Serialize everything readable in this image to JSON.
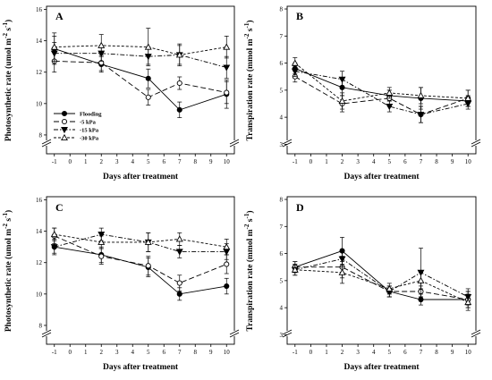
{
  "series_styles": {
    "Flooding": {
      "marker": "circle",
      "fill": "#000000",
      "dash": ""
    },
    "-5 kPa": {
      "marker": "circle",
      "fill": "#ffffff",
      "dash": "6,3"
    },
    "-15 kPa": {
      "marker": "triangle-down",
      "fill": "#000000",
      "dash": "5,2,1.5,2"
    },
    "-30 kPa": {
      "marker": "triangle-up",
      "fill": "#ffffff",
      "dash": "3,2"
    }
  },
  "legend": [
    "Flooding",
    "-5 kPa",
    "-15 kPa",
    "-30 kPa"
  ],
  "chart_data": [
    {
      "panel": "A",
      "type": "line",
      "xlabel": "Days after treatment",
      "ylabel": "Photosynthetic rate (umol m-2 s-1)",
      "ylabel_main": "Photosynthetic rate (umol m",
      "ylabel_exp1": "-2",
      "ylabel_mid": " s",
      "ylabel_exp2": "-1",
      "ylabel_end": ")",
      "xlim": [
        -1.5,
        10.5
      ],
      "ylim": [
        6.8,
        16.2
      ],
      "xticks": [
        -1,
        0,
        1,
        2,
        3,
        4,
        5,
        6,
        7,
        8,
        9,
        10
      ],
      "yticks": [
        8,
        10,
        12,
        14,
        16
      ],
      "x": [
        -1,
        2,
        5,
        7,
        10
      ],
      "series": [
        {
          "name": "Flooding",
          "values": [
            13.5,
            12.5,
            11.6,
            9.6,
            10.6
          ],
          "errors": [
            0.8,
            0.5,
            0.6,
            0.5,
            0.9
          ]
        },
        {
          "name": "-5 kPa",
          "values": [
            12.7,
            12.6,
            10.4,
            11.3,
            10.7
          ],
          "errors": [
            0.7,
            0.5,
            0.5,
            0.4,
            0.7
          ]
        },
        {
          "name": "-15 kPa",
          "values": [
            13.2,
            13.2,
            13.0,
            13.1,
            12.3
          ],
          "errors": [
            0.7,
            0.5,
            0.5,
            0.6,
            0.7
          ]
        },
        {
          "name": "-30 kPa",
          "values": [
            13.6,
            13.7,
            13.6,
            13.1,
            13.6
          ],
          "errors": [
            0.9,
            0.7,
            1.2,
            0.7,
            0.7
          ]
        }
      ]
    },
    {
      "panel": "B",
      "type": "line",
      "xlabel": "Days after treatment",
      "ylabel": "Transpiration rate (mmol m-2 s-1)",
      "ylabel_main": "Transpiration rate (mmol m",
      "ylabel_exp1": "-2",
      "ylabel_mid": " s",
      "ylabel_exp2": "-1",
      "ylabel_end": ")",
      "xlim": [
        -1.5,
        10.5
      ],
      "ylim": [
        2.65,
        8.1
      ],
      "xticks": [
        -1,
        0,
        1,
        2,
        3,
        4,
        5,
        6,
        7,
        8,
        9,
        10
      ],
      "yticks": [
        3,
        4,
        5,
        6,
        7,
        8
      ],
      "x": [
        -1,
        2,
        5,
        7,
        10
      ],
      "series": [
        {
          "name": "Flooding",
          "values": [
            5.8,
            5.1,
            4.8,
            4.7,
            4.6
          ],
          "errors": [
            0.2,
            0.3,
            0.2,
            0.4,
            0.2
          ]
        },
        {
          "name": "-5 kPa",
          "values": [
            5.5,
            4.5,
            4.7,
            4.1,
            4.7
          ],
          "errors": [
            0.2,
            0.3,
            0.3,
            0.3,
            0.3
          ]
        },
        {
          "name": "-15 kPa",
          "values": [
            5.7,
            5.4,
            4.4,
            4.1,
            4.5
          ],
          "errors": [
            0.2,
            0.3,
            0.2,
            0.3,
            0.2
          ]
        },
        {
          "name": "-30 kPa",
          "values": [
            6.0,
            4.6,
            4.9,
            4.8,
            4.7
          ],
          "errors": [
            0.2,
            0.3,
            0.2,
            0.3,
            0.3
          ]
        }
      ]
    },
    {
      "panel": "C",
      "type": "line",
      "xlabel": "Days after treatment",
      "ylabel": "Photosynthetic rate (umol m-2 s-1)",
      "ylabel_main": "Photosynthetic rate (umol m",
      "ylabel_exp1": "-2",
      "ylabel_mid": " s",
      "ylabel_exp2": "-1",
      "ylabel_end": ")",
      "xlim": [
        -1.5,
        10.5
      ],
      "ylim": [
        6.8,
        16.2
      ],
      "xticks": [
        -1,
        0,
        1,
        2,
        3,
        4,
        5,
        6,
        7,
        8,
        9,
        10
      ],
      "yticks": [
        8,
        10,
        12,
        14,
        16
      ],
      "x": [
        -1,
        2,
        5,
        7,
        10
      ],
      "series": [
        {
          "name": "Flooding",
          "values": [
            13.0,
            12.5,
            11.7,
            10.0,
            10.5
          ],
          "errors": [
            0.5,
            0.5,
            0.6,
            0.4,
            0.5
          ]
        },
        {
          "name": "-5 kPa",
          "values": [
            13.7,
            12.4,
            11.8,
            10.7,
            11.9
          ],
          "errors": [
            0.5,
            0.5,
            0.6,
            0.5,
            0.6
          ]
        },
        {
          "name": "-15 kPa",
          "values": [
            13.0,
            13.8,
            13.3,
            12.7,
            12.7
          ],
          "errors": [
            0.4,
            0.4,
            0.6,
            0.4,
            0.5
          ]
        },
        {
          "name": "-30 kPa",
          "values": [
            13.8,
            13.3,
            13.3,
            13.5,
            13.0
          ],
          "errors": [
            0.4,
            0.4,
            0.6,
            0.4,
            0.5
          ]
        }
      ]
    },
    {
      "panel": "D",
      "type": "line",
      "xlabel": "Days after treatment",
      "ylabel": "Transpiration rate (mmol m-2 s-1)",
      "ylabel_main": "Transpiration rate (mmol m",
      "ylabel_exp1": "-2",
      "ylabel_mid": " s",
      "ylabel_exp2": "-1",
      "ylabel_end": ")",
      "xlim": [
        -1.5,
        10.5
      ],
      "ylim": [
        2.65,
        8.1
      ],
      "xticks": [
        -1,
        0,
        1,
        2,
        3,
        4,
        5,
        6,
        7,
        8,
        9,
        10
      ],
      "yticks": [
        3,
        4,
        5,
        6,
        7,
        8
      ],
      "x": [
        -1,
        2,
        5,
        7,
        10
      ],
      "series": [
        {
          "name": "Flooding",
          "values": [
            5.5,
            6.1,
            4.6,
            4.3,
            4.3
          ],
          "errors": [
            0.2,
            0.5,
            0.2,
            0.2,
            0.3
          ]
        },
        {
          "name": "-5 kPa",
          "values": [
            5.5,
            5.5,
            4.6,
            4.6,
            4.3
          ],
          "errors": [
            0.2,
            0.4,
            0.2,
            0.2,
            0.3
          ]
        },
        {
          "name": "-15 kPa",
          "values": [
            5.4,
            5.8,
            4.6,
            5.3,
            4.4
          ],
          "errors": [
            0.2,
            0.3,
            0.2,
            0.9,
            0.3
          ]
        },
        {
          "name": "-30 kPa",
          "values": [
            5.4,
            5.3,
            4.7,
            5.0,
            4.2
          ],
          "errors": [
            0.2,
            0.4,
            0.2,
            0.3,
            0.3
          ]
        }
      ]
    }
  ]
}
